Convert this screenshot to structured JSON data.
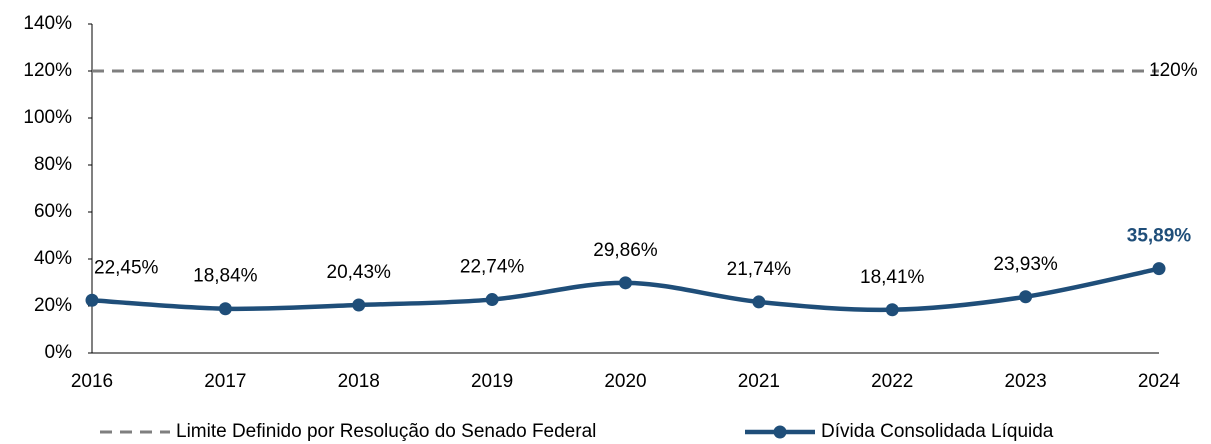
{
  "chart_data": {
    "type": "line",
    "categories": [
      "2016",
      "2017",
      "2018",
      "2019",
      "2020",
      "2021",
      "2022",
      "2023",
      "2024"
    ],
    "series": [
      {
        "name": "Limite Definido por Resolução do Senado Federal",
        "color": "#7f7f7f",
        "dashed": true,
        "values": [
          120,
          120,
          120,
          120,
          120,
          120,
          120,
          120,
          120
        ],
        "value_labels": [
          null,
          null,
          null,
          null,
          null,
          null,
          null,
          null,
          "120%"
        ]
      },
      {
        "name": "Dívida Consolidada Líquida",
        "color": "#1f4e79",
        "markers": true,
        "smooth": true,
        "values": [
          22.45,
          18.84,
          20.43,
          22.74,
          29.86,
          21.74,
          18.41,
          23.93,
          35.89
        ],
        "value_labels": [
          "22,45%",
          "18,84%",
          "20,43%",
          "22,74%",
          "29,86%",
          "21,74%",
          "18,41%",
          "23,93%",
          "35,89%"
        ]
      }
    ],
    "ylim": [
      0,
      140
    ],
    "yticks": [
      {
        "value": 0,
        "label": "0%"
      },
      {
        "value": 20,
        "label": "20%"
      },
      {
        "value": 40,
        "label": "40%"
      },
      {
        "value": 60,
        "label": "60%"
      },
      {
        "value": 80,
        "label": "80%"
      },
      {
        "value": 100,
        "label": "100%"
      },
      {
        "value": 120,
        "label": "120%"
      },
      {
        "value": 140,
        "label": "140%"
      }
    ],
    "legend": "bottom"
  }
}
